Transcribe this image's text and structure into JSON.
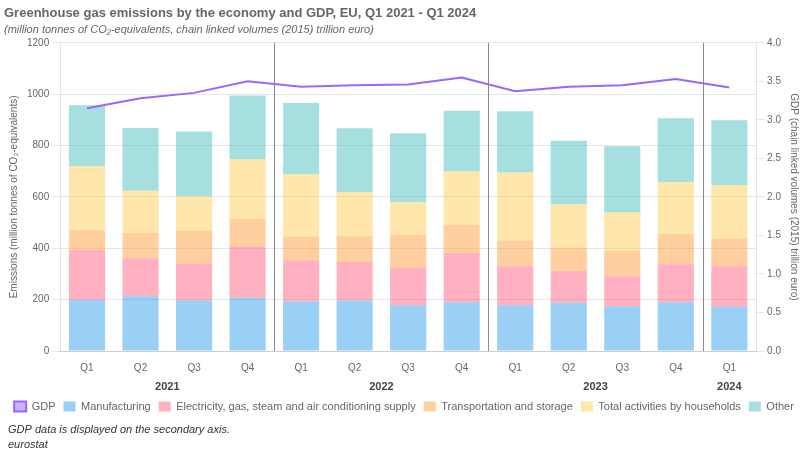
{
  "chart_data": {
    "type": "bar",
    "stacked": true,
    "title": "Greenhouse gas emissions by the economy and GDP, EU, Q1 2021 - Q1 2024",
    "subtitle": "(million tonnes of CO₂-equivalents, chain linked volumes (2015) trillion euro)",
    "ylabel": "Emissions (million tonnes of CO₂-equivalents)",
    "y2label": "GDP (chain linked volumes (2015) trillion euro)",
    "categories": [
      "Q1",
      "Q2",
      "Q3",
      "Q4",
      "Q1",
      "Q2",
      "Q3",
      "Q4",
      "Q1",
      "Q2",
      "Q3",
      "Q4",
      "Q1"
    ],
    "series": [
      {
        "name": "Manufacturing",
        "values": [
          200,
          213,
          198,
          207,
          193,
          197,
          178,
          190,
          178,
          188,
          173,
          190,
          172
        ]
      },
      {
        "name": "Electricity, gas, steam and air conditioning supply",
        "values": [
          193,
          148,
          142,
          200,
          160,
          150,
          147,
          192,
          152,
          123,
          118,
          148,
          158
        ]
      },
      {
        "name": "Transportation and storage",
        "values": [
          78,
          98,
          128,
          108,
          93,
          100,
          128,
          110,
          100,
          92,
          100,
          118,
          108
        ]
      },
      {
        "name": "Total activities by households",
        "values": [
          248,
          165,
          135,
          232,
          242,
          172,
          127,
          208,
          265,
          168,
          148,
          202,
          208
        ]
      },
      {
        "name": "Other",
        "values": [
          238,
          244,
          252,
          248,
          278,
          248,
          268,
          235,
          238,
          248,
          258,
          248,
          252
        ]
      },
      {
        "name": "GDP",
        "type": "line",
        "axis": "y2",
        "values": [
          3.15,
          3.28,
          3.35,
          3.5,
          3.43,
          3.45,
          3.46,
          3.55,
          3.37,
          3.43,
          3.45,
          3.53,
          3.42
        ]
      }
    ],
    "ylim": [
      0,
      1200
    ],
    "yticks": [
      0,
      200,
      400,
      600,
      800,
      1000,
      1200
    ],
    "y2lim": [
      0,
      4.0
    ],
    "y2ticks": [
      {
        "value": 0,
        "label": "0.0"
      },
      0.5,
      {
        "value": 1,
        "label": "1.0"
      },
      1.5,
      {
        "value": 2,
        "label": "2.0"
      },
      2.5,
      {
        "value": 3,
        "label": "3.0"
      },
      3.5,
      {
        "value": 4,
        "label": "4.0"
      }
    ],
    "grid": true,
    "legend": "bottom",
    "separators": [
      3.5,
      7.5,
      11.5
    ],
    "annotations": [
      {
        "text": "2021",
        "x": 1.5
      },
      {
        "text": "2022",
        "x": 5.5
      },
      {
        "text": "2023",
        "x": 9.5
      },
      {
        "text": "2024",
        "x": 12.0
      },
      {
        "text": "GDP data is displayed on the secondary axis."
      },
      {
        "text": "eurostat"
      }
    ]
  }
}
